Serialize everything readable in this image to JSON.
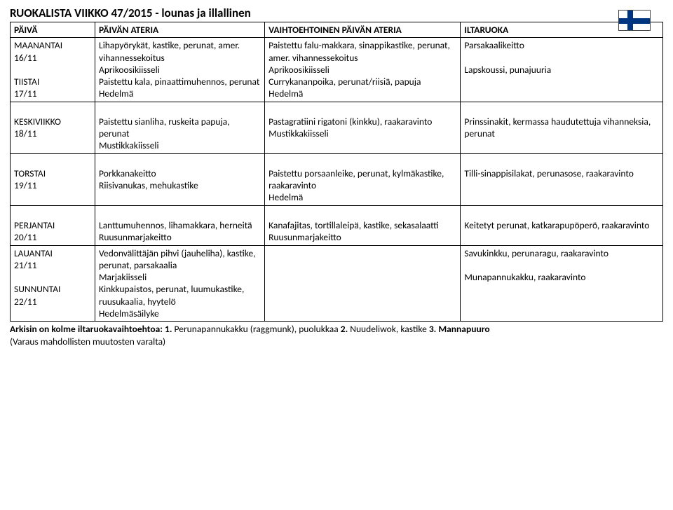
{
  "title": "RUOKALISTA VIIKKO 47/2015 - lounas ja illallinen",
  "headers": {
    "day": "PÄIVÄ",
    "main": "PÄIVÄN ATERIA",
    "alt": "VAIHTOEHTOINEN PÄIVÄN ATERIA",
    "evening": "ILTARUOKA"
  },
  "rows": [
    {
      "day": "MAANANTAI\n16/11",
      "main": "Lihapyörykät, kastike, perunat, amer. vihannessekoitus\nAprikoosikiisseli",
      "alt": "Paistettu falu-makkara, sinappikastike, perunat, amer. vihannessekoitus\nAprikoosikiisseli",
      "evening": "Parsakaalikeitto",
      "compound": true,
      "day2": "TIISTAI\n17/11",
      "main2": "Paistettu kala, pinaattimuhennos, perunat\nHedelmä",
      "alt2": "Currykananpoika, perunat/riisiä, papuja\nHedelmä",
      "evening2": "Lapskoussi, punajuuria"
    },
    {
      "day": "KESKIVIIKKO\n18/11",
      "main": "Paistettu sianliha, ruskeita papuja, perunat\nMustikkakiisseli",
      "alt": "Pastagratiini rigatoni (kinkku), raakaravinto\nMustikkakiisseli",
      "evening": "Prinssinakit, kermassa haudutettuja vihanneksia, perunat"
    },
    {
      "day": "TORSTAI\n19/11",
      "main": "Porkkanakeitto\nRiisivanukas, mehukastike",
      "alt": "Paistettu porsaanleike, perunat, kylmäkastike, raakaravinto\nHedelmä",
      "evening": "Tilli-sinappisilakat, perunasose, raakaravinto"
    },
    {
      "day": "PERJANTAI\n20/11",
      "main": "Lanttumuhennos, lihamakkara, herneitä\nRuusunmarjakeitto",
      "alt": "Kanafajitas, tortillaleipä, kastike, sekasalaatti\nRuusunmarjakeitto",
      "evening": "Keitetyt perunat, katkarapupöperö, raakaravinto"
    },
    {
      "day": "LAUANTAI\n21/11",
      "main": "Vedonvälittäjän pihvi (jauheliha), kastike, perunat, parsakaalia\nMarjakiisseli",
      "alt": "",
      "evening": "Savukinkku, perunaragu, raakaravinto",
      "compound": true,
      "day2": "SUNNUNTAI\n22/11",
      "main2": "Kinkkupaistos, perunat, luumukastike, ruusukaalia, hyytelö\nHedelmäsäilyke",
      "alt2": "",
      "evening2": "Munapannukakku, raakaravinto"
    }
  ],
  "footer": {
    "line1_bold": "Arkisin on kolme iltaruokavaihtoehtoa: 1.",
    "line1_plain1": " Perunapannukakku (raggmunk), puolukkaa ",
    "line1_bold2": "2.",
    "line1_plain2": " Nuudeliwok, kastike ",
    "line1_bold3": "3. Mannapuuro",
    "line2": "(Varaus mahdollisten muutosten varalta)"
  },
  "flag_colors": {
    "bg": "#ffffff",
    "cross": "#003580"
  }
}
